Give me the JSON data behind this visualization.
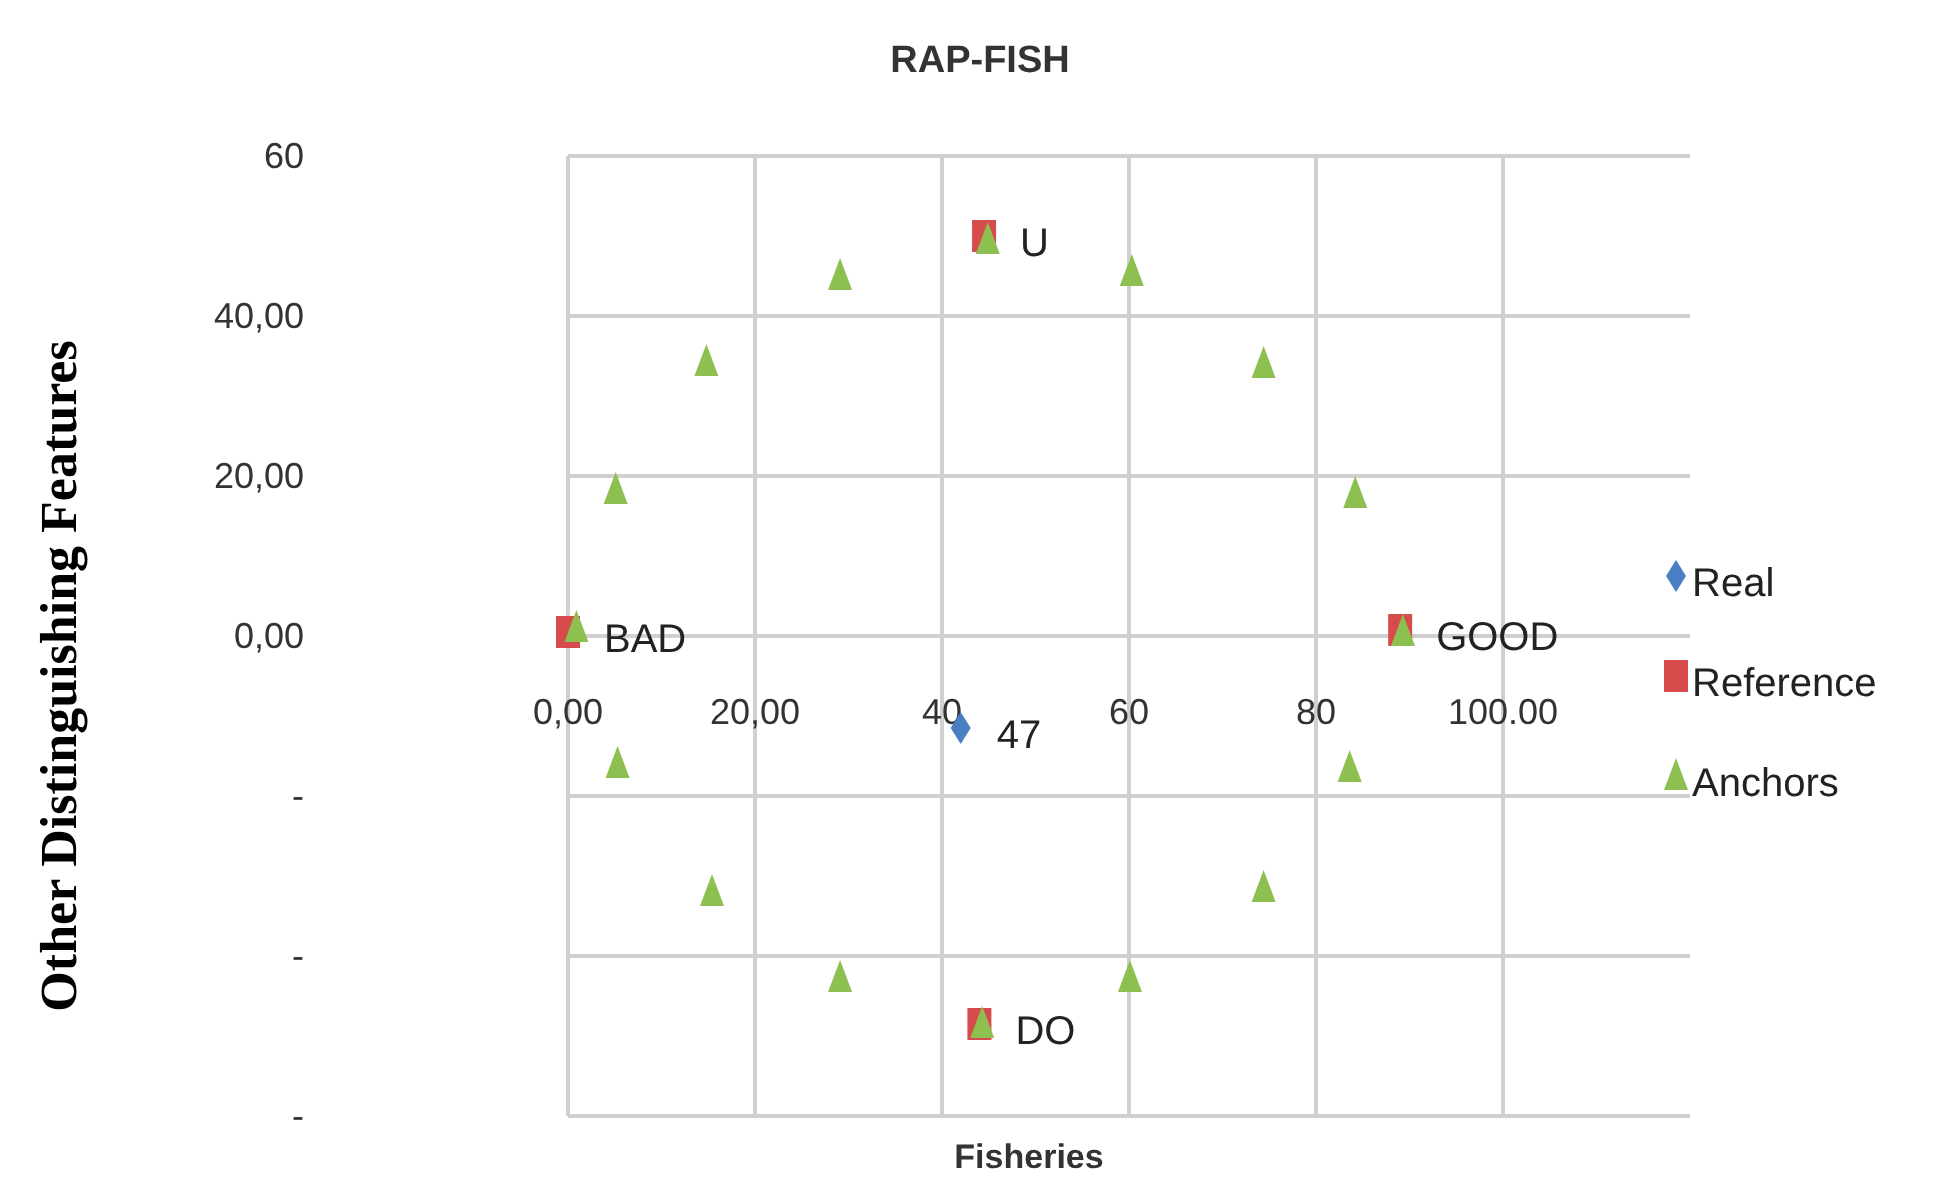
{
  "chart_data": {
    "type": "scatter",
    "title": "RAP-FISH",
    "xlabel": "Fisheries",
    "ylabel": "Other Distinguishing Features",
    "xlim": [
      0,
      120
    ],
    "ylim": [
      -60,
      60
    ],
    "xticks": [
      {
        "value": 0,
        "label": "0,00"
      },
      {
        "value": 20,
        "label": "20,00"
      },
      40,
      60,
      80,
      {
        "value": 100,
        "label": "100.00"
      }
    ],
    "yticks": [
      60,
      {
        "value": 40,
        "label": "40,00"
      },
      {
        "value": 20,
        "label": "20,00"
      },
      {
        "value": 0,
        "label": "0,00"
      },
      {
        "value": -20,
        "label": "-"
      },
      {
        "value": -40,
        "label": "-"
      },
      {
        "value": -60,
        "label": "-"
      }
    ],
    "grid": true,
    "legend": "right",
    "series": [
      {
        "name": "Real",
        "color": "#4a7fc4",
        "marker": "diamond",
        "x": [
          42
        ],
        "values": [
          -11.5
        ]
      },
      {
        "name": "Reference",
        "color": "#d64b4b",
        "marker": "square",
        "x": [
          0,
          89,
          44.5,
          44
        ],
        "values": [
          0.5,
          0.75,
          50,
          -48.5
        ]
      },
      {
        "name": "Anchors",
        "color": "#8dc050",
        "marker": "triangle",
        "x": [
          0.9,
          5.1,
          14.8,
          29.1,
          44.9,
          60.3,
          74.4,
          84.2,
          89.3,
          83.6,
          74.4,
          60.1,
          44.3,
          29.1,
          15.4,
          5.3
        ],
        "values": [
          1,
          18.25,
          34.25,
          45,
          49.5,
          45.5,
          34,
          17.75,
          0.5,
          -16.5,
          -31.5,
          -42.75,
          -48.5,
          -42.75,
          -32,
          -16
        ]
      }
    ],
    "annotations": [
      {
        "text": "47",
        "x": 42,
        "y": -11.5
      },
      {
        "text": "BAD",
        "x": 0,
        "y": 0.5
      },
      {
        "text": "GOOD",
        "x": 89,
        "y": 0.75
      },
      {
        "text": "U",
        "x": 44.5,
        "y": 50
      },
      {
        "text": "DO",
        "x": 44,
        "y": -48.5
      }
    ]
  }
}
